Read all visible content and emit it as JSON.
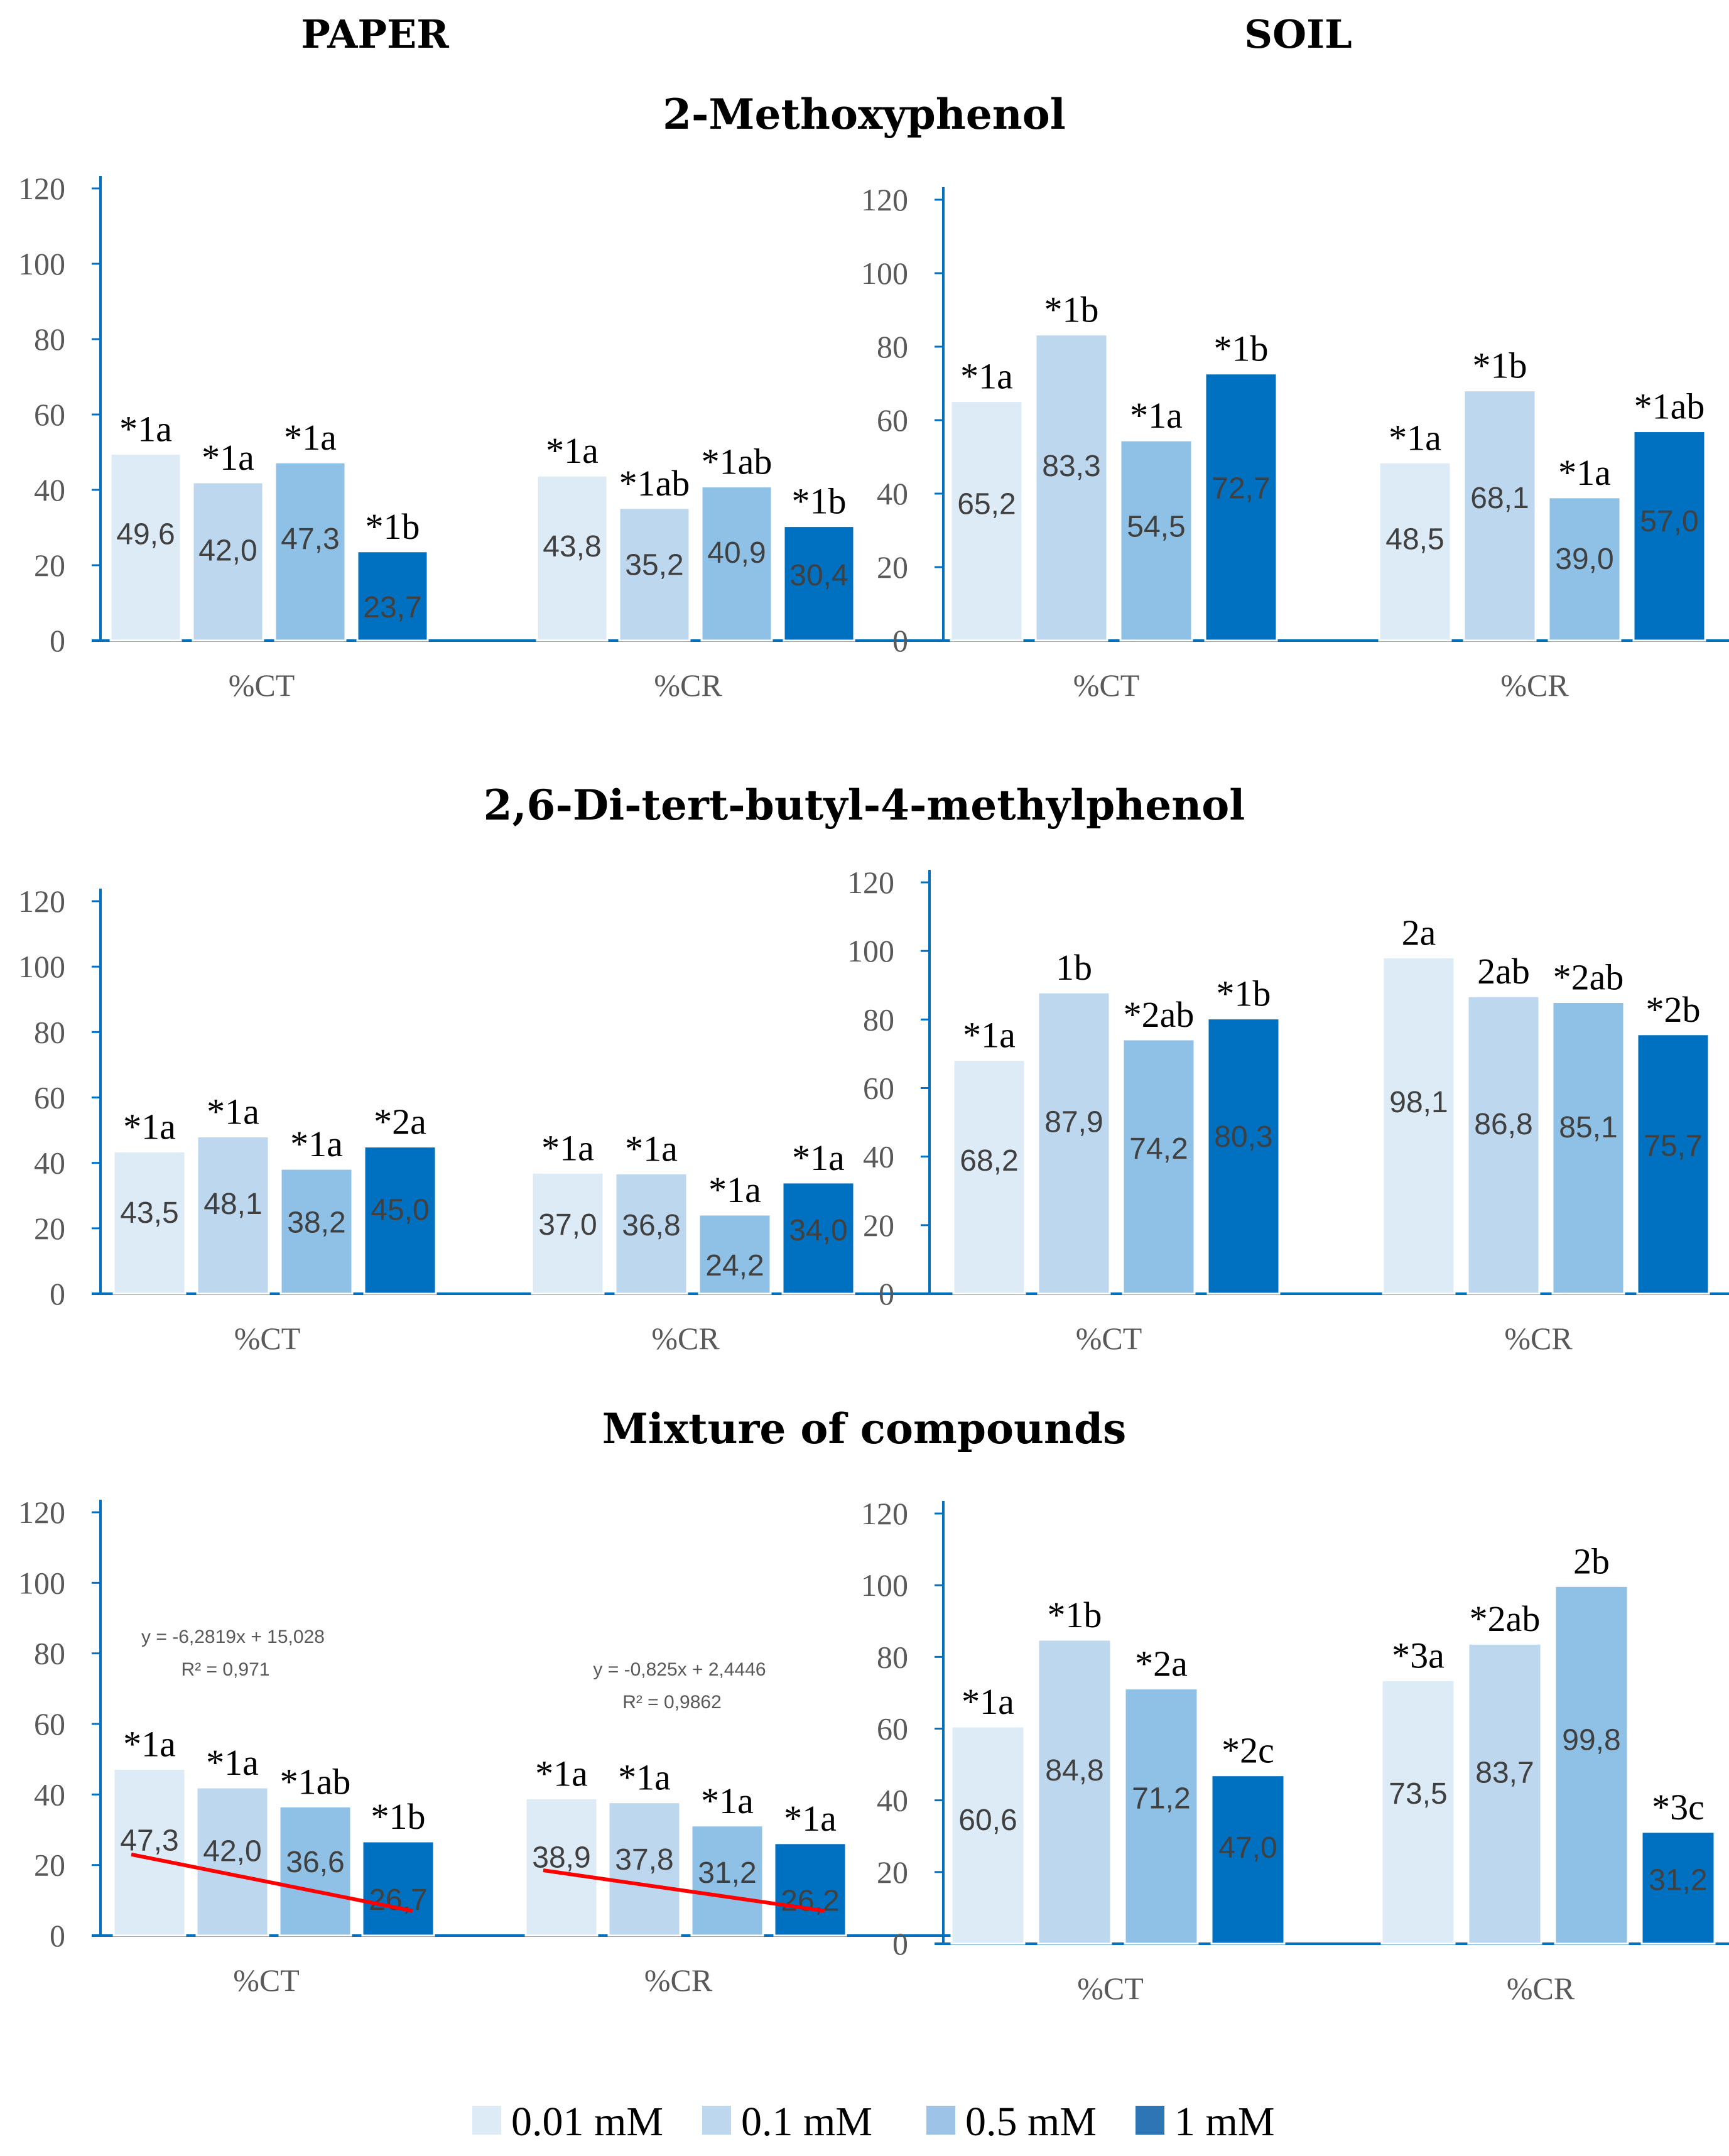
{
  "column_titles": [
    "PAPER",
    "SOIL"
  ],
  "row_titles": [
    "2-Methoxyphenol",
    "2,6-Di-tert-butyl-4-methylphenol",
    "Mixture of compounds"
  ],
  "legend": [
    {
      "label": "0.01 mM",
      "color": "#DDEBF7"
    },
    {
      "label": "0.1 mM",
      "color": "#BDD7EE"
    },
    {
      "label": "0.5 mM",
      "color": "#9DC3E6"
    },
    {
      "label": "1 mM",
      "color": "#2E75B6"
    }
  ],
  "colors": {
    "bars": [
      "#DDEBF7",
      "#BDD7EE",
      "#8FC1E6",
      "#0070C0"
    ],
    "axis": "#0070C0",
    "trendline": "#FF0000"
  },
  "chart_data": [
    {
      "type": "bar",
      "panel": "PAPER",
      "row_title": "2-Methoxyphenol",
      "categories": [
        "%CT",
        "%CR"
      ],
      "ylim": [
        0,
        120
      ],
      "yticks": [
        0,
        20,
        40,
        60,
        80,
        100,
        120
      ],
      "series": [
        {
          "name": "0.01 mM",
          "values": [
            49.6,
            43.8
          ],
          "labels": [
            "49,6",
            "43,8"
          ],
          "annotations": [
            "*1a",
            "*1a"
          ]
        },
        {
          "name": "0.1 mM",
          "values": [
            42.0,
            35.2
          ],
          "labels": [
            "42,0",
            "35,2"
          ],
          "annotations": [
            "*1a",
            "*1ab"
          ]
        },
        {
          "name": "0.5 mM",
          "values": [
            47.3,
            40.9
          ],
          "labels": [
            "47,3",
            "40,9"
          ],
          "annotations": [
            "*1a",
            "*1ab"
          ]
        },
        {
          "name": "1 mM",
          "values": [
            23.7,
            30.4
          ],
          "labels": [
            "23,7",
            "30,4"
          ],
          "annotations": [
            "*1b",
            "*1b"
          ]
        }
      ]
    },
    {
      "type": "bar",
      "panel": "SOIL",
      "row_title": "2-Methoxyphenol",
      "categories": [
        "%CT",
        "%CR"
      ],
      "ylim": [
        0,
        120
      ],
      "yticks": [
        0,
        20,
        40,
        60,
        80,
        100,
        120
      ],
      "series": [
        {
          "name": "0.01 mM",
          "values": [
            65.2,
            48.5
          ],
          "labels": [
            "65,2",
            "48,5"
          ],
          "annotations": [
            "*1a",
            "*1a"
          ]
        },
        {
          "name": "0.1 mM",
          "values": [
            83.3,
            68.1
          ],
          "labels": [
            "83,3",
            "68,1"
          ],
          "annotations": [
            "*1b",
            "*1b"
          ]
        },
        {
          "name": "0.5 mM",
          "values": [
            54.5,
            39.0
          ],
          "labels": [
            "54,5",
            "39,0"
          ],
          "annotations": [
            "*1a",
            "*1a"
          ]
        },
        {
          "name": "1 mM",
          "values": [
            72.7,
            57.0
          ],
          "labels": [
            "72,7",
            "57,0"
          ],
          "annotations": [
            "*1b",
            "*1ab"
          ]
        }
      ]
    },
    {
      "type": "bar",
      "panel": "PAPER",
      "row_title": "2,6-Di-tert-butyl-4-methylphenol",
      "categories": [
        "%CT",
        "%CR"
      ],
      "ylim": [
        0,
        120
      ],
      "yticks": [
        0,
        20,
        40,
        60,
        80,
        100,
        120
      ],
      "series": [
        {
          "name": "0.01 mM",
          "values": [
            43.5,
            37.0
          ],
          "labels": [
            "43,5",
            "37,0"
          ],
          "annotations": [
            "*1a",
            "*1a"
          ]
        },
        {
          "name": "0.1 mM",
          "values": [
            48.1,
            36.8
          ],
          "labels": [
            "48,1",
            "36,8"
          ],
          "annotations": [
            "*1a",
            "*1a"
          ]
        },
        {
          "name": "0.5 mM",
          "values": [
            38.2,
            24.2
          ],
          "labels": [
            "38,2",
            "24,2"
          ],
          "annotations": [
            "*1a",
            "*1a"
          ]
        },
        {
          "name": "1 mM",
          "values": [
            45.0,
            34.0
          ],
          "labels": [
            "45,0",
            "34,0"
          ],
          "annotations": [
            "*2a",
            "*1a"
          ]
        }
      ]
    },
    {
      "type": "bar",
      "panel": "SOIL",
      "row_title": "2,6-Di-tert-butyl-4-methylphenol",
      "categories": [
        "%CT",
        "%CR"
      ],
      "ylim": [
        0,
        120
      ],
      "yticks": [
        0,
        20,
        40,
        60,
        80,
        100,
        120
      ],
      "series": [
        {
          "name": "0.01 mM",
          "values": [
            68.2,
            98.1
          ],
          "labels": [
            "68,2",
            "98,1"
          ],
          "annotations": [
            "*1a",
            "2a"
          ]
        },
        {
          "name": "0.1 mM",
          "values": [
            87.9,
            86.8
          ],
          "labels": [
            "87,9",
            "86,8"
          ],
          "annotations": [
            "1b",
            "2ab"
          ]
        },
        {
          "name": "0.5 mM",
          "values": [
            74.2,
            85.1
          ],
          "labels": [
            "74,2",
            "85,1"
          ],
          "annotations": [
            "*2ab",
            "*2ab"
          ]
        },
        {
          "name": "1 mM",
          "values": [
            80.3,
            75.7
          ],
          "labels": [
            "80,3",
            "75,7"
          ],
          "annotations": [
            "*1b",
            "*2b"
          ]
        }
      ]
    },
    {
      "type": "bar",
      "panel": "PAPER",
      "row_title": "Mixture of compounds",
      "categories": [
        "%CT",
        "%CR"
      ],
      "ylim": [
        0,
        120
      ],
      "yticks": [
        0,
        20,
        40,
        60,
        80,
        100,
        120
      ],
      "series": [
        {
          "name": "0.01 mM",
          "values": [
            47.3,
            38.9
          ],
          "labels": [
            "47,3",
            "38,9"
          ],
          "annotations": [
            "*1a",
            "*1a"
          ]
        },
        {
          "name": "0.1 mM",
          "values": [
            42.0,
            37.8
          ],
          "labels": [
            "42,0",
            "37,8"
          ],
          "annotations": [
            "*1a",
            "*1a"
          ]
        },
        {
          "name": "0.5 mM",
          "values": [
            36.6,
            31.2
          ],
          "labels": [
            "36,6",
            "31,2"
          ],
          "annotations": [
            "*1ab",
            "*1a"
          ]
        },
        {
          "name": "1 mM",
          "values": [
            26.7,
            26.2
          ],
          "labels": [
            "26,7",
            "26,2"
          ],
          "annotations": [
            "*1b",
            "*1a"
          ]
        }
      ],
      "trendlines": [
        {
          "category": "%CT",
          "equation": "y = -6,2819x + 15,028",
          "r2": "R² = 0,971",
          "start_value": 23,
          "end_value": 7
        },
        {
          "category": "%CR",
          "equation": "y = -0,825x + 2,4446",
          "r2": "R² = 0,9862",
          "start_value": 18.5,
          "end_value": 7
        }
      ]
    },
    {
      "type": "bar",
      "panel": "SOIL",
      "row_title": "Mixture of compounds",
      "categories": [
        "%CT",
        "%CR"
      ],
      "ylim": [
        0,
        120
      ],
      "yticks": [
        0,
        20,
        40,
        60,
        80,
        100,
        120
      ],
      "series": [
        {
          "name": "0.01 mM",
          "values": [
            60.6,
            73.5
          ],
          "labels": [
            "60,6",
            "73,5"
          ],
          "annotations": [
            "*1a",
            "*3a"
          ]
        },
        {
          "name": "0.1 mM",
          "values": [
            84.8,
            83.7
          ],
          "labels": [
            "84,8",
            "83,7"
          ],
          "annotations": [
            "*1b",
            "*2ab"
          ]
        },
        {
          "name": "0.5 mM",
          "values": [
            71.2,
            99.8
          ],
          "labels": [
            "71,2",
            "99,8"
          ],
          "annotations": [
            "*2a",
            "2b"
          ]
        },
        {
          "name": "1 mM",
          "values": [
            47.0,
            31.2
          ],
          "labels": [
            "47,0",
            "31,2"
          ],
          "annotations": [
            "*2c",
            "*3c"
          ]
        }
      ]
    }
  ]
}
